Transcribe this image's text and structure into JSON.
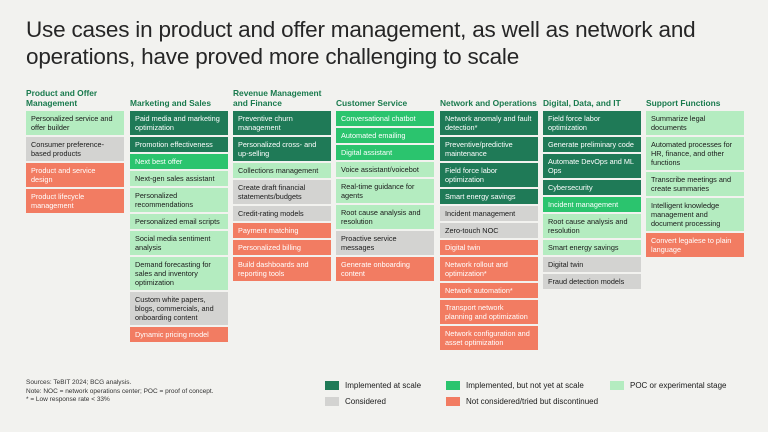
{
  "title": "Use cases in product and offer management, as well as network and operations, have proved more challenging to scale",
  "colors": {
    "implemented_at_scale": "#1f7a57",
    "implemented_not_scale": "#2bc46e",
    "poc": "#b4ecc0",
    "considered": "#d3d3d1",
    "discontinued": "#f27c62"
  },
  "columns": [
    {
      "header": "Product and Offer Management",
      "items": [
        {
          "text": "Personalized service and offer builder",
          "status": "poc"
        },
        {
          "text": "Consumer preference-based products",
          "status": "considered"
        },
        {
          "text": "Product and service design",
          "status": "discontinued"
        },
        {
          "text": "Product lifecycle management",
          "status": "discontinued"
        }
      ]
    },
    {
      "header": "Marketing and Sales",
      "items": [
        {
          "text": "Paid media and marketing optimization",
          "status": "implemented_at_scale"
        },
        {
          "text": "Promotion effectiveness",
          "status": "implemented_at_scale"
        },
        {
          "text": "Next best offer",
          "status": "implemented_not_scale"
        },
        {
          "text": "Next-gen sales assistant",
          "status": "poc"
        },
        {
          "text": "Personalized recommendations",
          "status": "poc"
        },
        {
          "text": "Personalized email scripts",
          "status": "poc"
        },
        {
          "text": "Social media sentiment analysis",
          "status": "poc"
        },
        {
          "text": "Demand forecasting for sales and inventory optimization",
          "status": "poc"
        },
        {
          "text": "Custom white papers, blogs, commercials, and onboarding content",
          "status": "considered"
        },
        {
          "text": "Dynamic pricing model",
          "status": "discontinued"
        }
      ]
    },
    {
      "header": "Revenue Management and Finance",
      "items": [
        {
          "text": "Preventive churn management",
          "status": "implemented_at_scale"
        },
        {
          "text": "Personalized cross- and up-selling",
          "status": "implemented_at_scale"
        },
        {
          "text": "Collections management",
          "status": "poc"
        },
        {
          "text": "Create draft financial statements/budgets",
          "status": "considered"
        },
        {
          "text": "Credit-rating models",
          "status": "considered"
        },
        {
          "text": "Payment matching",
          "status": "discontinued"
        },
        {
          "text": "Personalized billing",
          "status": "discontinued"
        },
        {
          "text": "Build dashboards and reporting tools",
          "status": "discontinued"
        }
      ]
    },
    {
      "header": "Customer Service",
      "items": [
        {
          "text": "Conversational chatbot",
          "status": "implemented_not_scale"
        },
        {
          "text": "Automated emailing",
          "status": "implemented_not_scale"
        },
        {
          "text": "Digital assistant",
          "status": "implemented_not_scale"
        },
        {
          "text": "Voice assistant/voicebot",
          "status": "poc"
        },
        {
          "text": "Real-time guidance for agents",
          "status": "poc"
        },
        {
          "text": "Root cause analysis and resolution",
          "status": "poc"
        },
        {
          "text": "Proactive service messages",
          "status": "considered"
        },
        {
          "text": "Generate onboarding content",
          "status": "discontinued"
        }
      ]
    },
    {
      "header": "Network and Operations",
      "items": [
        {
          "text": "Network anomaly and fault detection*",
          "status": "implemented_at_scale"
        },
        {
          "text": "Preventive/predictive maintenance",
          "status": "implemented_at_scale"
        },
        {
          "text": "Field force labor optimization",
          "status": "implemented_at_scale"
        },
        {
          "text": "Smart energy savings",
          "status": "implemented_at_scale"
        },
        {
          "text": "Incident management",
          "status": "considered"
        },
        {
          "text": "Zero-touch NOC",
          "status": "considered"
        },
        {
          "text": "Digital twin",
          "status": "discontinued"
        },
        {
          "text": "Network rollout and optimization*",
          "status": "discontinued"
        },
        {
          "text": "Network automation*",
          "status": "discontinued"
        },
        {
          "text": "Transport network planning and optimization",
          "status": "discontinued"
        },
        {
          "text": "Network configuration and asset optimization",
          "status": "discontinued"
        }
      ]
    },
    {
      "header": "Digital, Data, and IT",
      "items": [
        {
          "text": "Field force labor optimization",
          "status": "implemented_at_scale"
        },
        {
          "text": "Generate preliminary code",
          "status": "implemented_at_scale"
        },
        {
          "text": "Automate DevOps and ML Ops",
          "status": "implemented_at_scale"
        },
        {
          "text": "Cybersecurity",
          "status": "implemented_at_scale"
        },
        {
          "text": "Incident management",
          "status": "implemented_not_scale"
        },
        {
          "text": "Root cause analysis and resolution",
          "status": "poc"
        },
        {
          "text": "Smart energy savings",
          "status": "poc"
        },
        {
          "text": "Digital twin",
          "status": "considered"
        },
        {
          "text": "Fraud detection models",
          "status": "considered"
        }
      ]
    },
    {
      "header": "Support Functions",
      "items": [
        {
          "text": "Summarize legal documents",
          "status": "poc"
        },
        {
          "text": "Automated processes for HR, finance, and other functions",
          "status": "poc"
        },
        {
          "text": "Transcribe meetings and create summaries",
          "status": "poc"
        },
        {
          "text": "Intelligent knowledge management and document processing",
          "status": "poc"
        },
        {
          "text": "Convert legalese to plain language",
          "status": "discontinued"
        }
      ]
    }
  ],
  "notes": [
    "Sources: TeBIT 2024; BCG analysis.",
    "Note: NOC = network operations center; POC = proof of concept.",
    "* = Low response rate < 33%"
  ],
  "legend": [
    {
      "key": "implemented_at_scale",
      "label": "Implemented at scale"
    },
    {
      "key": "implemented_not_scale",
      "label": "Implemented, but not yet at scale"
    },
    {
      "key": "poc",
      "label": "POC or experimental stage"
    },
    {
      "key": "considered",
      "label": "Considered"
    },
    {
      "key": "discontinued",
      "label": "Not considered/tried but discontinued"
    }
  ]
}
